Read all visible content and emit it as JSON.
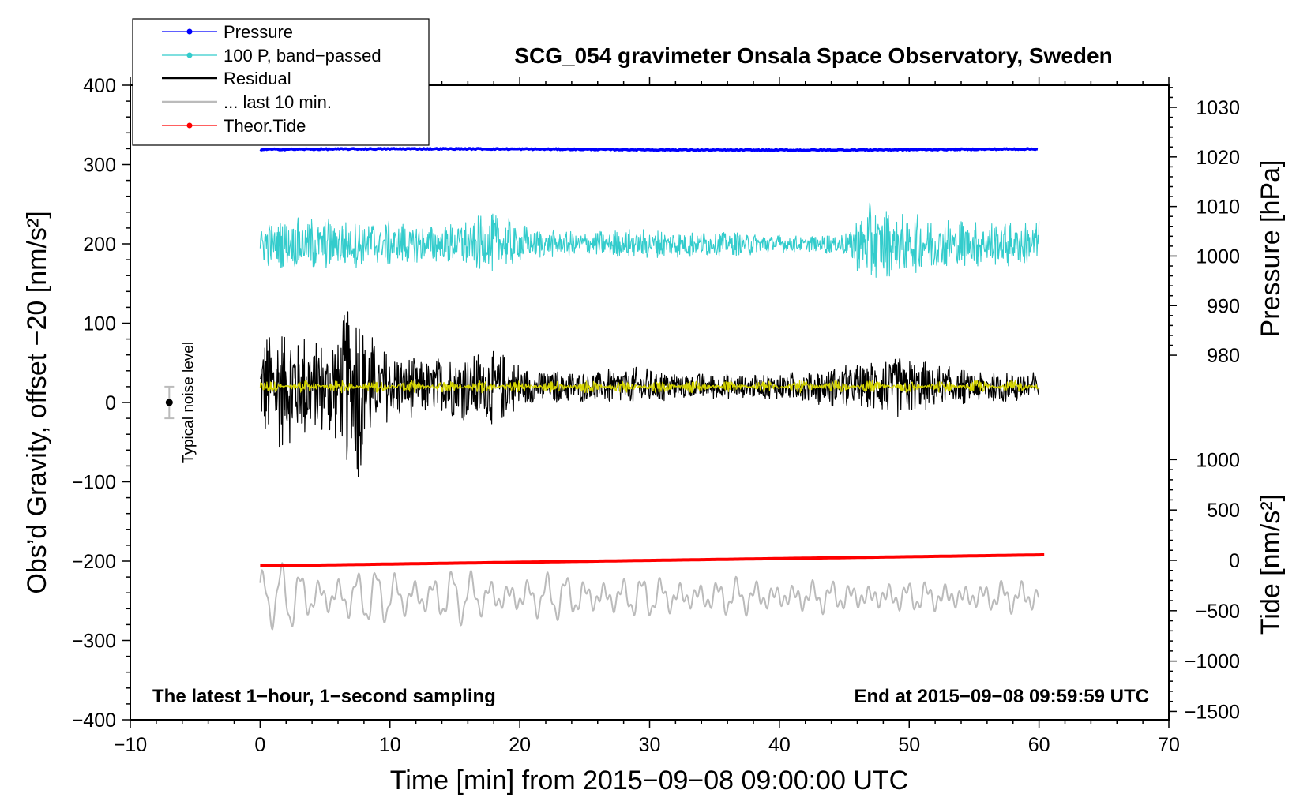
{
  "chart_data": {
    "type": "line",
    "title": "SCG_054 gravimeter Onsala Space Observatory, Sweden",
    "xlabel": "Time [min] from 2015−09−08 09:00:00 UTC",
    "ylabel_left": "Obs’d Gravity, offset −20 [nm/s²]",
    "ylabel_right_pressure": "Pressure [hPa]",
    "ylabel_right_tide": "Tide [nm/s²]",
    "xlim": [
      -10,
      70
    ],
    "ylim_left": [
      -400,
      400
    ],
    "x_ticks": [
      -10,
      0,
      10,
      20,
      30,
      40,
      50,
      60,
      70
    ],
    "x_tick_labels": [
      "−10",
      "0",
      "10",
      "20",
      "30",
      "40",
      "50",
      "60",
      "70"
    ],
    "y_ticks_left": [
      400,
      300,
      200,
      100,
      0,
      -100,
      -200,
      -300,
      -400
    ],
    "y_tick_labels_left": [
      "400",
      "300",
      "200",
      "100",
      "0",
      "−100",
      "−200",
      "−300",
      "−400"
    ],
    "pressure_ticks": [
      1030,
      1020,
      1010,
      1000,
      990,
      980
    ],
    "pressure_tick_labels": [
      "1030",
      "1020",
      "1010",
      "1000",
      "990",
      "980"
    ],
    "tide_ticks": [
      1000,
      500,
      0,
      -500,
      -1000,
      -1500
    ],
    "tide_tick_labels": [
      "1000",
      "500",
      "0",
      "−500",
      "−1000",
      "−1500"
    ],
    "legend": {
      "placement": "top-left",
      "entries": [
        {
          "label": "Pressure",
          "color": "#0000ff",
          "style": "line-dot"
        },
        {
          "label": "100 P, band−passed",
          "color": "#33cccc",
          "style": "line-dot"
        },
        {
          "label": "Residual",
          "color": "#000000",
          "style": "line"
        },
        {
          "label": "... last 10 min.",
          "color": "#bbbbbb",
          "style": "line"
        },
        {
          "label": "Theor.Tide",
          "color": "#ff0000",
          "style": "line-dot"
        }
      ]
    },
    "series": [
      {
        "name": "Pressure",
        "axis": "left",
        "color": "#0000ff",
        "x_range": [
          0,
          60
        ],
        "approx_value": 319,
        "approx_pressure_hPa": 1021.5,
        "noise_amp": 1.5
      },
      {
        "name": "100 P, band−passed",
        "axis": "left",
        "color": "#33cccc",
        "x_range": [
          0,
          60
        ],
        "baseline": 200,
        "amp_profile": [
          [
            0,
            28
          ],
          [
            4,
            35
          ],
          [
            9,
            30
          ],
          [
            14,
            25
          ],
          [
            18,
            40
          ],
          [
            21,
            20
          ],
          [
            25,
            15
          ],
          [
            29,
            20
          ],
          [
            33,
            18
          ],
          [
            38,
            15
          ],
          [
            42,
            10
          ],
          [
            45,
            15
          ],
          [
            47,
            55
          ],
          [
            49,
            40
          ],
          [
            55,
            30
          ],
          [
            60,
            30
          ]
        ]
      },
      {
        "name": "Residual",
        "axis": "left",
        "color": "#000000",
        "x_range": [
          0,
          60
        ],
        "baseline": 20,
        "amp_profile": [
          [
            0,
            65
          ],
          [
            2,
            85
          ],
          [
            5,
            60
          ],
          [
            7.5,
            120
          ],
          [
            9,
            50
          ],
          [
            13,
            35
          ],
          [
            18,
            50
          ],
          [
            21,
            22
          ],
          [
            25,
            20
          ],
          [
            29,
            25
          ],
          [
            33,
            18
          ],
          [
            38,
            15
          ],
          [
            42,
            20
          ],
          [
            46,
            30
          ],
          [
            49,
            40
          ],
          [
            55,
            20
          ],
          [
            60,
            22
          ]
        ]
      },
      {
        "name": "... last 10 min.",
        "axis": "left",
        "color": "#bbbbbb",
        "x_range": [
          0,
          60
        ],
        "baseline": -245,
        "amp_profile": [
          [
            0,
            35
          ],
          [
            2.5,
            38
          ],
          [
            4,
            30
          ],
          [
            15,
            32
          ],
          [
            17,
            22
          ],
          [
            24,
            25
          ],
          [
            32,
            20
          ],
          [
            45,
            14
          ],
          [
            60,
            14
          ]
        ]
      },
      {
        "name": "Theor.Tide",
        "axis": "left",
        "color": "#ff0000",
        "x_range": [
          0,
          60.5
        ],
        "y_start": -206,
        "y_end": -192,
        "tide_start_nm_s2": -45,
        "tide_end_nm_s2": 65
      }
    ],
    "noise_marker": {
      "label": "Typical noise level",
      "x": -7,
      "y": 0,
      "err": 20
    },
    "annotations": {
      "bottom_left": "The latest 1−hour, 1−second sampling",
      "bottom_right": "End at 2015−09−08 09:59:59 UTC"
    }
  }
}
